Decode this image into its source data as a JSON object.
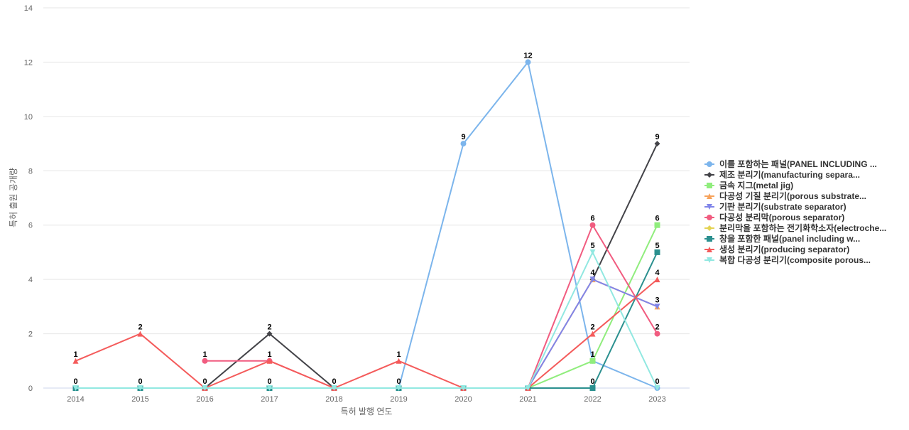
{
  "chart_data": {
    "type": "line",
    "title": "",
    "xlabel": "특허 발행 연도",
    "ylabel": "특허 출원 공개량",
    "ylim": [
      0,
      14
    ],
    "yticks": [
      0,
      2,
      4,
      6,
      8,
      10,
      12,
      14
    ],
    "grid": true,
    "legend_position": "right",
    "x": [
      "2014",
      "2015",
      "2016",
      "2017",
      "2018",
      "2019",
      "2020",
      "2021",
      "2022",
      "2023"
    ],
    "series": [
      {
        "name": "이를 포함하는 패널(PANEL INCLUDING ...",
        "color": "#7cb5ec",
        "marker": "circle",
        "values": [
          0,
          0,
          0,
          0,
          0,
          0,
          9,
          12,
          1,
          0
        ],
        "labels": [
          0,
          0,
          0,
          0,
          0,
          0,
          9,
          12,
          1,
          0
        ]
      },
      {
        "name": "제조 분리기(manufacturing separa...",
        "color": "#434348",
        "marker": "diamond",
        "values": [
          null,
          null,
          0,
          2,
          0,
          null,
          null,
          null,
          4,
          9
        ],
        "labels": [
          null,
          null,
          null,
          2,
          null,
          null,
          null,
          null,
          null,
          9
        ]
      },
      {
        "name": "금속 지그(metal jig)",
        "color": "#90ed7d",
        "marker": "square",
        "values": [
          null,
          null,
          null,
          null,
          null,
          null,
          null,
          0,
          1,
          6
        ],
        "labels": [
          null,
          null,
          null,
          null,
          null,
          null,
          null,
          null,
          null,
          6
        ]
      },
      {
        "name": "다공성 기질 분리기(porous substrate...",
        "color": "#f7a35c",
        "marker": "triangle",
        "values": [
          null,
          null,
          null,
          null,
          null,
          null,
          null,
          0,
          4,
          3
        ],
        "labels": [
          null,
          null,
          null,
          null,
          null,
          null,
          null,
          null,
          null,
          null
        ]
      },
      {
        "name": "기판 분리기(substrate separator)",
        "color": "#8085e9",
        "marker": "triangle-down",
        "values": [
          null,
          null,
          null,
          null,
          null,
          null,
          null,
          0,
          4,
          3
        ],
        "labels": [
          null,
          null,
          null,
          null,
          null,
          null,
          null,
          null,
          4,
          3
        ]
      },
      {
        "name": "다공성 분리막(porous separator)",
        "color": "#f15c80",
        "marker": "circle",
        "values": [
          null,
          null,
          1,
          1,
          0,
          null,
          null,
          0,
          6,
          2
        ],
        "labels": [
          null,
          null,
          1,
          null,
          null,
          null,
          null,
          null,
          6,
          2
        ]
      },
      {
        "name": "분리막을 포함하는 전기화학소자(electroche...",
        "color": "#e4d354",
        "marker": "diamond",
        "values": [
          null,
          null,
          null,
          null,
          null,
          null,
          null,
          null,
          null,
          null
        ],
        "labels": [
          null,
          null,
          null,
          null,
          null,
          null,
          null,
          null,
          null,
          null
        ]
      },
      {
        "name": "창을 포함한 패널(panel including w...",
        "color": "#2b908f",
        "marker": "square",
        "values": [
          0,
          0,
          0,
          0,
          0,
          0,
          0,
          0,
          0,
          5
        ],
        "labels": [
          null,
          null,
          null,
          null,
          null,
          null,
          null,
          null,
          0,
          5
        ]
      },
      {
        "name": "생성 분리기(producing separator)",
        "color": "#f45b5b",
        "marker": "triangle",
        "values": [
          1,
          2,
          0,
          1,
          0,
          1,
          0,
          0,
          2,
          4
        ],
        "labels": [
          1,
          2,
          null,
          1,
          null,
          1,
          null,
          null,
          2,
          4
        ]
      },
      {
        "name": "복합 다공성 분리기(composite porous...",
        "color": "#91e8e1",
        "marker": "triangle-down",
        "values": [
          0,
          0,
          0,
          0,
          0,
          0,
          0,
          0,
          5,
          0
        ],
        "labels": [
          null,
          null,
          null,
          null,
          null,
          null,
          null,
          null,
          5,
          null
        ]
      }
    ]
  }
}
